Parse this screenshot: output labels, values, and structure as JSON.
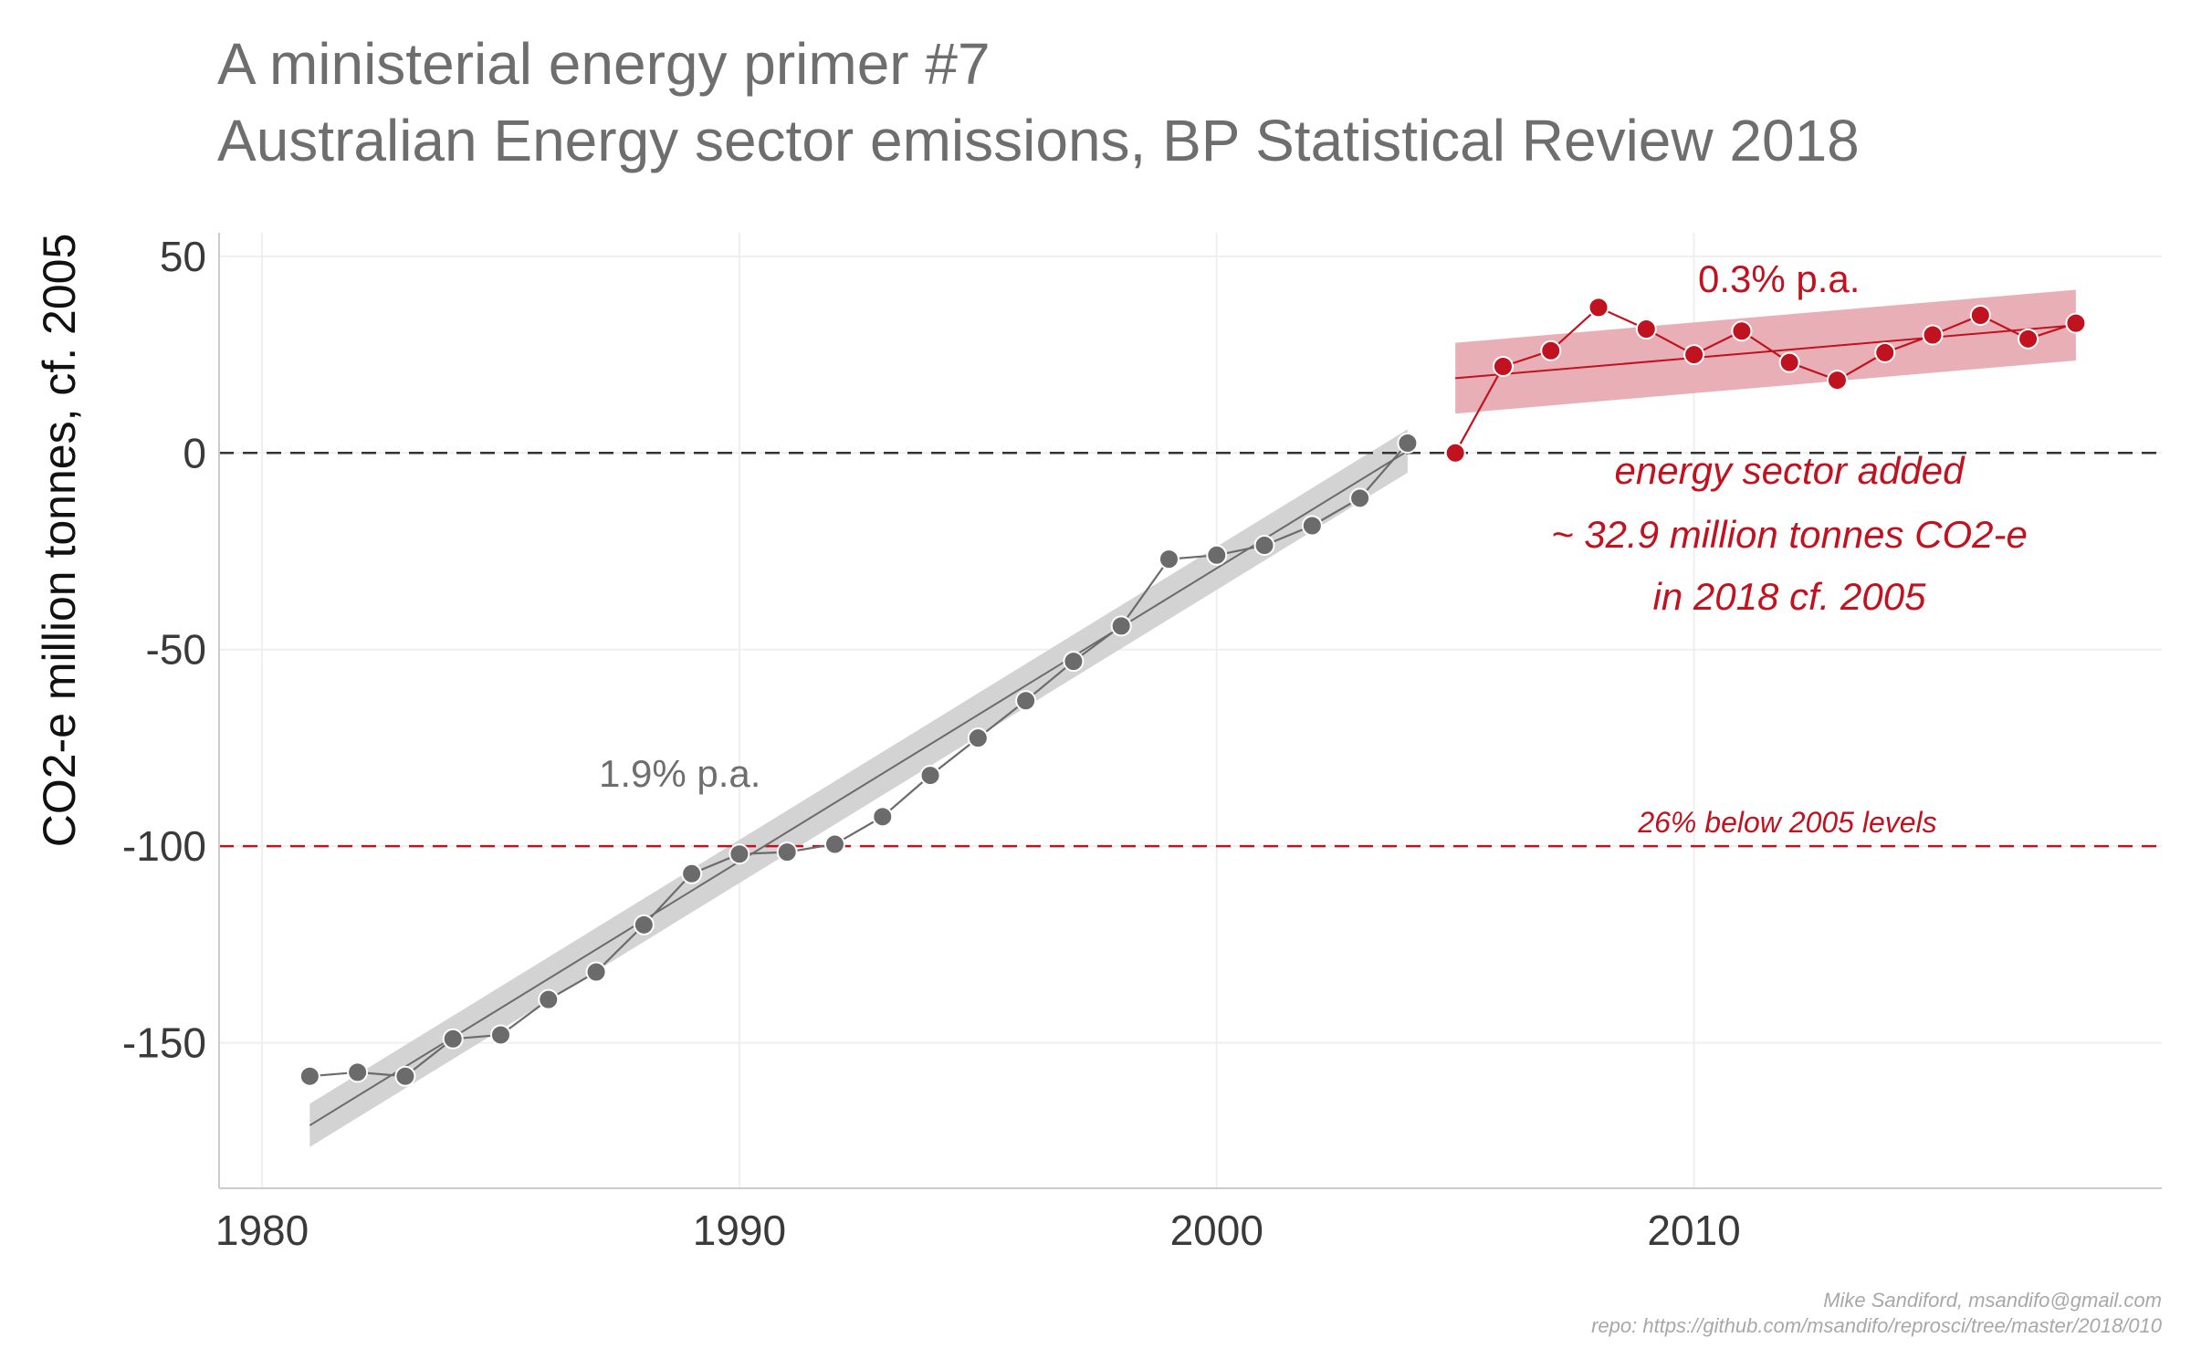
{
  "title": {
    "line1": "A ministerial energy primer #7",
    "line2": "Australian Energy sector emissions, BP Statistical Review 2018"
  },
  "credits": {
    "line1": "Mike Sandiford, msandifo@gmail.com",
    "line2": "repo: https://github.com/msandifo/reprosci/tree/master/2018/010"
  },
  "annotations": {
    "growth_early": "1.9% p.a.",
    "growth_late": "0.3% p.a.",
    "added_line1": "energy sector added",
    "added_line2": "~ 32.9 million tonnes CO2-e",
    "added_line3": "in 2018  cf. 2005",
    "target_label": "26% below 2005 levels"
  },
  "colors": {
    "grey_series": "#6b6b6b",
    "grey_band": "#d3d3d3",
    "red_series": "#c0121f",
    "red_band": "#e8b0b6",
    "reference_line": "#333333",
    "target_line": "#c0121f",
    "grid": "#efefef",
    "axis": "#cccccc"
  },
  "chart_data": {
    "type": "line",
    "ylabel": "CO2-e million tonnes, cf. 2005",
    "xlabel": "",
    "xlim": [
      1979.1,
      2019.8
    ],
    "ylim": [
      -187,
      56
    ],
    "x_ticks": [
      1980,
      1990,
      2000,
      2010
    ],
    "x_tick_labels": [
      "1980",
      "1990",
      "2000",
      "2010"
    ],
    "y_ticks": [
      50,
      0,
      -50,
      -100,
      -150
    ],
    "y_tick_labels": [
      "50",
      "0",
      "-50",
      "-100",
      "-150"
    ],
    "grid": true,
    "series": [
      {
        "x": [
          1981,
          1982,
          1983,
          1984,
          1985,
          1986,
          1987,
          1988,
          1989,
          1990,
          1991,
          1992,
          1993,
          1994,
          1995,
          1996,
          1997,
          1998,
          1999,
          2000,
          2001,
          2002,
          2003,
          2004
        ],
        "values": [
          -158.5,
          -157.5,
          -158.5,
          -149,
          -148,
          -139,
          -132,
          -120,
          -107,
          -102,
          -101.5,
          -99.5,
          -92.5,
          -82,
          -72.5,
          -63,
          -53,
          -44,
          -27,
          -26,
          -23.5,
          -18.5,
          -11.5,
          2.5
        ]
      },
      {
        "x": [
          2005,
          2006,
          2007,
          2008,
          2009,
          2010,
          2011,
          2012,
          2013,
          2014,
          2015,
          2016,
          2017,
          2018
        ],
        "values": [
          0,
          22,
          26,
          37,
          31.5,
          25,
          31,
          23,
          18.5,
          25.5,
          30,
          35,
          29,
          33
        ]
      }
    ],
    "trends": [
      {
        "x": [
          1981,
          2004
        ],
        "values": [
          -171,
          0.5
        ],
        "band_lower": [
          -176.5,
          -5
        ],
        "band_upper": [
          -165.5,
          6
        ]
      },
      {
        "x": [
          2005,
          2018
        ],
        "values": [
          19,
          32.5
        ],
        "band_lower": [
          10,
          23.5
        ],
        "band_upper": [
          28,
          41.5
        ]
      }
    ],
    "reference_lines": [
      {
        "y": 0
      },
      {
        "y": -100
      }
    ]
  }
}
